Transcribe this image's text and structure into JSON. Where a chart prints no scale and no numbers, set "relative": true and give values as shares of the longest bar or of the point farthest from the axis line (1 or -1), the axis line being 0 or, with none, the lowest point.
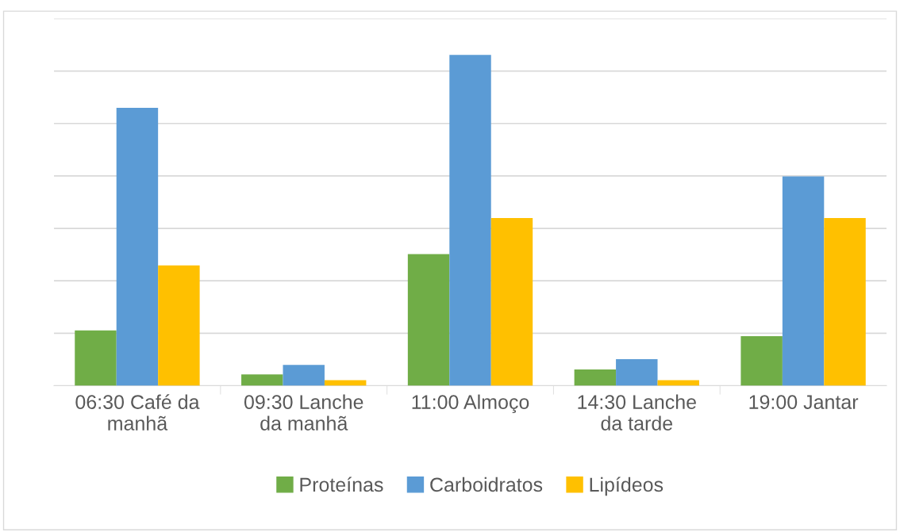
{
  "chart_data": {
    "type": "bar",
    "relative": true,
    "categories": [
      "06:30 Café da manhã",
      "09:30 Lanche da manhã",
      "11:00 Almoço",
      "14:30 Lanche da tarde",
      "19:00 Jantar"
    ],
    "series": [
      {
        "name": "Proteínas",
        "color": "#70ad47",
        "values": [
          0.167,
          0.034,
          0.398,
          0.049,
          0.15
        ]
      },
      {
        "name": "Carboidratos",
        "color": "#5b9bd5",
        "values": [
          0.84,
          0.063,
          1,
          0.08,
          0.633
        ]
      },
      {
        "name": "Lipídeos",
        "color": "#ffc000",
        "values": [
          0.364,
          0.017,
          0.507,
          0.017,
          0.507
        ]
      }
    ],
    "grid": "y",
    "legend": "bottom"
  }
}
